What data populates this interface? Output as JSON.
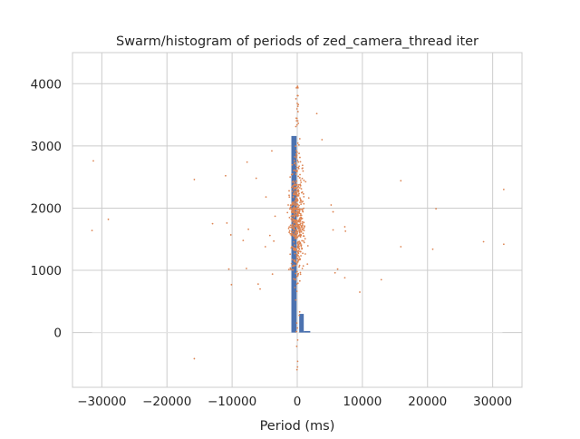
{
  "chart_data": {
    "type": "scatter",
    "title": "Swarm/histogram of periods of zed_camera_thread iter",
    "xlabel": "Period (ms)",
    "ylabel": "",
    "xlim": [
      -34500,
      34500
    ],
    "ylim": [
      -880,
      4500
    ],
    "xticks": [
      -30000,
      -20000,
      -10000,
      0,
      10000,
      20000,
      30000
    ],
    "xtick_labels": [
      "−30000",
      "−20000",
      "−10000",
      "0",
      "10000",
      "20000",
      "30000"
    ],
    "yticks": [
      0,
      1000,
      2000,
      3000,
      4000
    ],
    "ytick_labels": [
      "0",
      "1000",
      "2000",
      "3000",
      "4000"
    ],
    "grid": true,
    "colors": {
      "histogram": "#4c72b0",
      "swarm": "#dd8452",
      "grid": "#cccccc",
      "axes": "#cccccc"
    },
    "histogram_bars": [
      {
        "x0": -900,
        "x1": -100,
        "count": 3160
      },
      {
        "x0": 300,
        "x1": 1000,
        "count": 300
      },
      {
        "x0": 1000,
        "x1": 2000,
        "count": 25
      }
    ],
    "baseline": {
      "x0": -31500,
      "x1": 31500,
      "y": 0
    },
    "scatter_outliers": [
      [
        -31300,
        2760
      ],
      [
        -31500,
        1640
      ],
      [
        -29000,
        1820
      ],
      [
        -15800,
        2460
      ],
      [
        -15800,
        -420
      ],
      [
        -13000,
        1750
      ],
      [
        -11000,
        2520
      ],
      [
        -10800,
        1760
      ],
      [
        -10200,
        1570
      ],
      [
        -10500,
        1020
      ],
      [
        -10100,
        770
      ],
      [
        -8300,
        1480
      ],
      [
        -7500,
        1660
      ],
      [
        -7700,
        2740
      ],
      [
        -7800,
        1030
      ],
      [
        -6300,
        2480
      ],
      [
        -6000,
        780
      ],
      [
        -5700,
        700
      ],
      [
        -4900,
        1380
      ],
      [
        -4800,
        2180
      ],
      [
        -3900,
        2920
      ],
      [
        -4200,
        1560
      ],
      [
        -3600,
        1470
      ],
      [
        -3400,
        1870
      ],
      [
        -3800,
        940
      ],
      [
        3800,
        3100
      ],
      [
        3000,
        3520
      ],
      [
        5200,
        2050
      ],
      [
        5500,
        1940
      ],
      [
        5500,
        1650
      ],
      [
        5800,
        960
      ],
      [
        6200,
        1020
      ],
      [
        7300,
        1700
      ],
      [
        7400,
        1630
      ],
      [
        7300,
        880
      ],
      [
        9600,
        650
      ],
      [
        12900,
        850
      ],
      [
        15900,
        2440
      ],
      [
        15900,
        1380
      ],
      [
        20800,
        1340
      ],
      [
        21300,
        1990
      ],
      [
        28600,
        1460
      ],
      [
        31700,
        2300
      ],
      [
        31700,
        1420
      ]
    ],
    "swarm_seed": 7,
    "swarm_count": 520
  }
}
